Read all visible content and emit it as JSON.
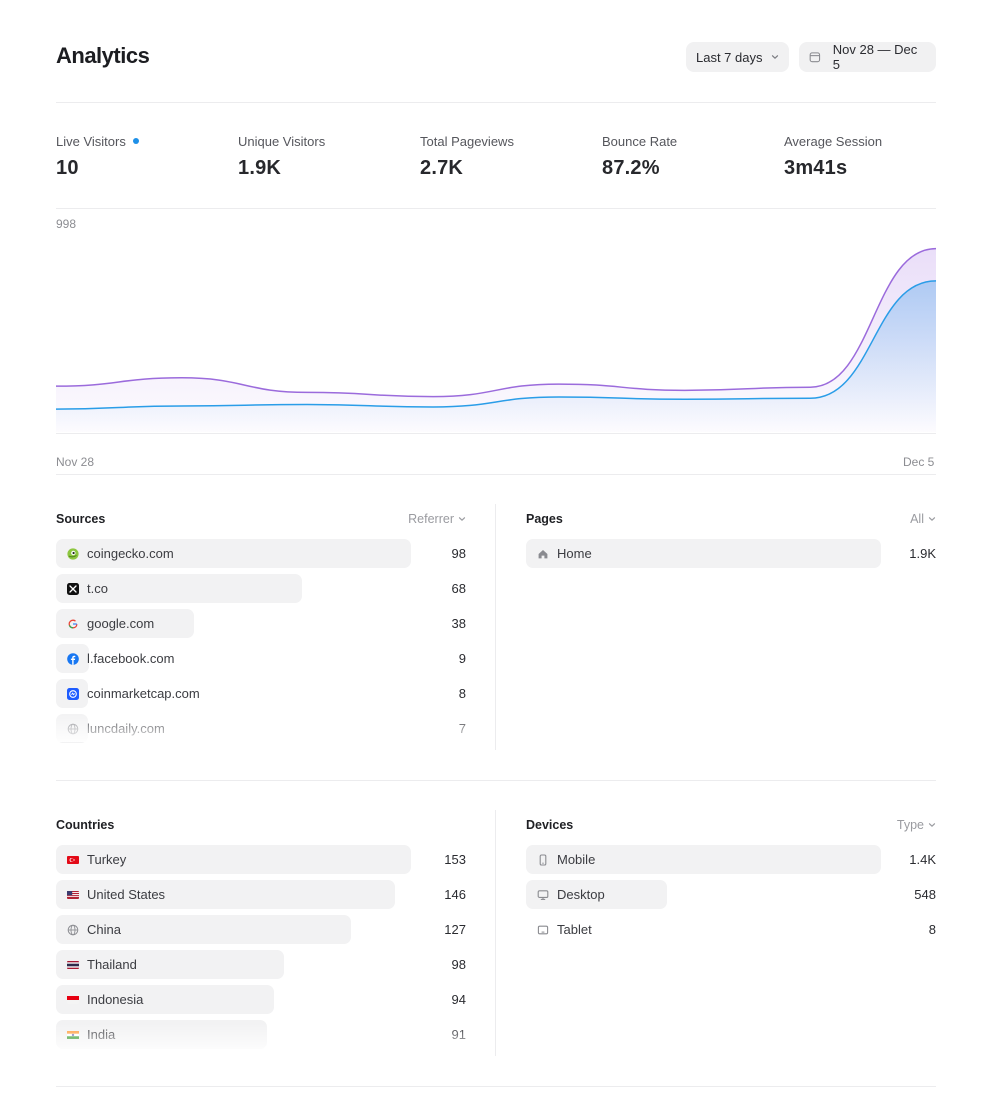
{
  "header": {
    "title": "Analytics",
    "range_label": "Last 7 days",
    "date_range": "Nov 28 — Dec 5"
  },
  "stats": [
    {
      "label": "Live Visitors",
      "value": "10"
    },
    {
      "label": "Unique Visitors",
      "value": "1.9K"
    },
    {
      "label": "Total Pageviews",
      "value": "2.7K"
    },
    {
      "label": "Bounce Rate",
      "value": "87.2%"
    },
    {
      "label": "Average Session",
      "value": "3m41s"
    }
  ],
  "chart_data": {
    "type": "area",
    "ymax_label": "998",
    "ylim": [
      0,
      998
    ],
    "x_start_label": "Nov 28",
    "x_end_label": "Dec 5",
    "x": [
      0,
      1,
      2,
      3,
      4,
      5,
      6,
      7
    ],
    "series": [
      {
        "color": "#9b6bdc",
        "values": [
          220,
          260,
          190,
          170,
          230,
          200,
          215,
          880
        ]
      },
      {
        "color": "#2a9de8",
        "values": [
          110,
          125,
          132,
          120,
          168,
          157,
          162,
          725
        ]
      }
    ]
  },
  "sources": {
    "title": "Sources",
    "filter": "Referrer",
    "rows": [
      {
        "name": "coingecko.com",
        "value": "98",
        "icon": "coingecko-icon",
        "fraction": 0.866
      },
      {
        "name": "t.co",
        "value": "68",
        "icon": "x-icon",
        "fraction": 0.601
      },
      {
        "name": "google.com",
        "value": "38",
        "icon": "google-icon",
        "fraction": 0.336
      },
      {
        "name": "l.facebook.com",
        "value": "9",
        "icon": "facebook-icon",
        "fraction": 0.08
      },
      {
        "name": "coinmarketcap.com",
        "value": "8",
        "icon": "coinmarketcap-icon",
        "fraction": 0.071
      },
      {
        "name": "luncdaily.com",
        "value": "7",
        "icon": "globe-icon",
        "fraction": 0.062
      }
    ]
  },
  "pages": {
    "title": "Pages",
    "filter": "All",
    "rows": [
      {
        "name": "Home",
        "value": "1.9K",
        "icon": "home-icon",
        "fraction": 0.866
      }
    ]
  },
  "countries": {
    "title": "Countries",
    "filter": "",
    "rows": [
      {
        "name": "Turkey",
        "value": "153",
        "icon": "flag-turkey-icon",
        "fraction": 0.866
      },
      {
        "name": "United States",
        "value": "146",
        "icon": "flag-us-icon",
        "fraction": 0.826
      },
      {
        "name": "China",
        "value": "127",
        "icon": "globe-icon",
        "fraction": 0.719
      },
      {
        "name": "Thailand",
        "value": "98",
        "icon": "flag-thailand-icon",
        "fraction": 0.555
      },
      {
        "name": "Indonesia",
        "value": "94",
        "icon": "flag-indonesia-icon",
        "fraction": 0.532
      },
      {
        "name": "India",
        "value": "91",
        "icon": "flag-india-icon",
        "fraction": 0.515
      }
    ]
  },
  "devices": {
    "title": "Devices",
    "filter": "Type",
    "rows": [
      {
        "name": "Mobile",
        "value": "1.4K",
        "icon": "mobile-icon",
        "fraction": 0.866
      },
      {
        "name": "Desktop",
        "value": "548",
        "icon": "desktop-icon",
        "fraction": 0.345
      },
      {
        "name": "Tablet",
        "value": "8",
        "icon": "tablet-icon",
        "fraction": 0.0
      }
    ]
  }
}
